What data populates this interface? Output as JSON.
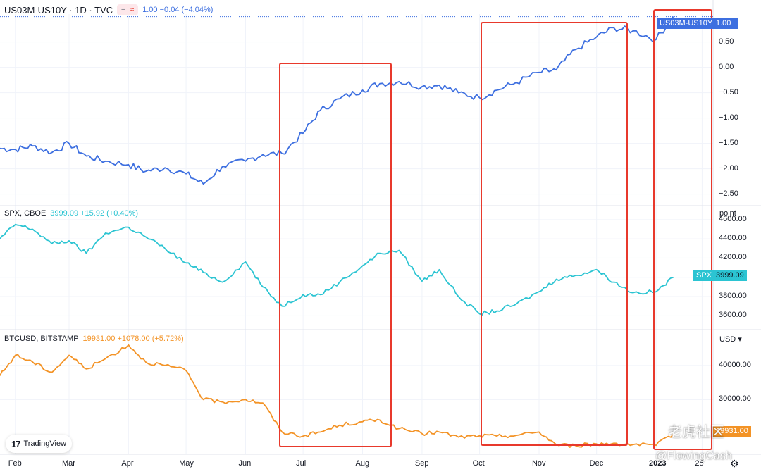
{
  "panes": [
    {
      "symbol": "US03M-US10Y · 1D · TVC",
      "header_values": "1.00  −0.04 (−4.04%)",
      "color": "#3d6fe0",
      "axis_unit": "",
      "tag_name": "US03M-US10Y",
      "tag_value": "1.00",
      "ticks": [
        "0.50",
        "0.00",
        "−0.50",
        "−1.00",
        "−1.50",
        "−2.00",
        "−2.50"
      ]
    },
    {
      "symbol": "SPX, CBOE",
      "header_values": "3999.09  +15.92 (+0.40%)",
      "color": "#2bc4d2",
      "axis_unit": "point",
      "tag_name": "SPX",
      "tag_value": "3999.09",
      "ticks": [
        "4600.00",
        "4400.00",
        "4200.00",
        "4000.00",
        "3800.00",
        "3600.00"
      ]
    },
    {
      "symbol": "BTCUSD, BITSTAMP",
      "header_values": "19931.00  +1078.00 (+5.72%)",
      "color": "#f39326",
      "axis_unit": "USD ▾",
      "tag_name": "",
      "tag_value": "19931.00",
      "ticks": [
        "40000.00",
        "30000.00"
      ]
    }
  ],
  "icons": {
    "pane1_buttons": [
      "−",
      "≈"
    ]
  },
  "x_axis_labels": [
    "Feb",
    "Mar",
    "Apr",
    "May",
    "Jun",
    "Jul",
    "Aug",
    "Sep",
    "Oct",
    "Nov",
    "Dec",
    "2023",
    "25"
  ],
  "highlight_color": "#e8392c",
  "logo_text": "TradingView",
  "logo_mark": "17",
  "watermark_1": "老虎社区",
  "watermark_2": "@FlowingCash",
  "chart_data": [
    {
      "type": "line",
      "title": "US03M-US10Y · 1D · TVC",
      "series": [
        {
          "name": "US03M-US10Y",
          "x": [
            "2022-01-24",
            "2022-02-01",
            "2022-02-10",
            "2022-02-20",
            "2022-03-01",
            "2022-03-10",
            "2022-03-20",
            "2022-04-01",
            "2022-04-10",
            "2022-04-20",
            "2022-05-01",
            "2022-05-10",
            "2022-05-20",
            "2022-06-01",
            "2022-06-10",
            "2022-06-20",
            "2022-07-01",
            "2022-07-10",
            "2022-07-20",
            "2022-08-01",
            "2022-08-10",
            "2022-08-20",
            "2022-09-01",
            "2022-09-10",
            "2022-09-20",
            "2022-10-01",
            "2022-10-10",
            "2022-10-20",
            "2022-11-01",
            "2022-11-10",
            "2022-11-20",
            "2022-12-01",
            "2022-12-10",
            "2022-12-20",
            "2023-01-01",
            "2023-01-10"
          ],
          "values": [
            -1.6,
            -1.62,
            -1.55,
            -1.68,
            -1.5,
            -1.75,
            -1.85,
            -1.92,
            -2.05,
            -1.98,
            -2.1,
            -2.3,
            -1.95,
            -1.85,
            -1.72,
            -1.7,
            -1.3,
            -0.85,
            -0.62,
            -0.45,
            -0.32,
            -0.28,
            -0.38,
            -0.35,
            -0.5,
            -0.6,
            -0.45,
            -0.3,
            -0.1,
            -0.05,
            0.35,
            0.6,
            0.78,
            0.72,
            0.55,
            1.0
          ]
        }
      ],
      "ylim": [
        -2.7,
        1.05
      ]
    },
    {
      "type": "line",
      "title": "SPX, CBOE",
      "series": [
        {
          "name": "SPX",
          "x": [
            "2022-01-24",
            "2022-02-01",
            "2022-02-10",
            "2022-02-20",
            "2022-03-01",
            "2022-03-10",
            "2022-03-20",
            "2022-04-01",
            "2022-04-10",
            "2022-04-20",
            "2022-05-01",
            "2022-05-10",
            "2022-05-20",
            "2022-06-01",
            "2022-06-10",
            "2022-06-20",
            "2022-07-01",
            "2022-07-10",
            "2022-07-20",
            "2022-08-01",
            "2022-08-10",
            "2022-08-20",
            "2022-09-01",
            "2022-09-10",
            "2022-09-20",
            "2022-10-01",
            "2022-10-10",
            "2022-10-20",
            "2022-11-01",
            "2022-11-10",
            "2022-11-20",
            "2022-12-01",
            "2022-12-10",
            "2022-12-20",
            "2023-01-01",
            "2023-01-10"
          ],
          "values": [
            4400,
            4550,
            4500,
            4350,
            4380,
            4250,
            4460,
            4520,
            4420,
            4300,
            4150,
            4050,
            3950,
            4160,
            3900,
            3700,
            3820,
            3820,
            3950,
            4120,
            4250,
            4280,
            3960,
            4080,
            3800,
            3620,
            3650,
            3720,
            3850,
            3980,
            4020,
            4080,
            3950,
            3840,
            3850,
            3999.09
          ]
        }
      ],
      "ylim": [
        3500,
        4650
      ]
    },
    {
      "type": "line",
      "title": "BTCUSD, BITSTAMP",
      "series": [
        {
          "name": "BTCUSD",
          "x": [
            "2022-01-24",
            "2022-02-01",
            "2022-02-10",
            "2022-02-20",
            "2022-03-01",
            "2022-03-10",
            "2022-03-20",
            "2022-04-01",
            "2022-04-10",
            "2022-04-20",
            "2022-05-01",
            "2022-05-10",
            "2022-05-20",
            "2022-06-01",
            "2022-06-10",
            "2022-06-20",
            "2022-07-01",
            "2022-07-10",
            "2022-07-20",
            "2022-08-01",
            "2022-08-10",
            "2022-08-20",
            "2022-09-01",
            "2022-09-10",
            "2022-09-20",
            "2022-10-01",
            "2022-10-10",
            "2022-10-20",
            "2022-11-01",
            "2022-11-10",
            "2022-11-20",
            "2022-12-01",
            "2022-12-10",
            "2022-12-20",
            "2023-01-01",
            "2023-01-10"
          ],
          "values": [
            37000,
            43000,
            41000,
            38000,
            43000,
            39000,
            42000,
            46000,
            41000,
            40000,
            38500,
            30000,
            29300,
            30000,
            29000,
            20500,
            19300,
            20500,
            22500,
            23500,
            24000,
            21500,
            20000,
            20500,
            19000,
            19400,
            19300,
            19500,
            20500,
            16800,
            16500,
            17000,
            17200,
            16800,
            16600,
            19931
          ]
        }
      ],
      "ylim": [
        15000,
        47000
      ]
    }
  ]
}
